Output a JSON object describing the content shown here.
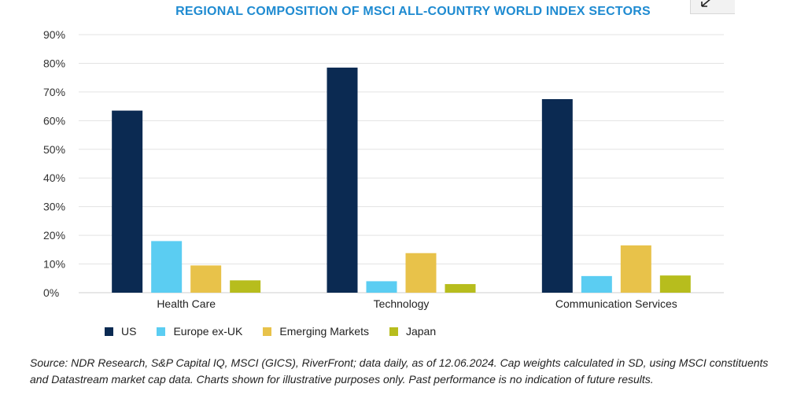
{
  "chart_data": {
    "type": "bar",
    "title": "REGIONAL COMPOSITION OF MSCI ALL-COUNTRY WORLD INDEX SECTORS",
    "categories": [
      "Health Care",
      "Technology",
      "Communication Services"
    ],
    "series": [
      {
        "name": "US",
        "color": "#0b2a52",
        "values": [
          63.5,
          78.5,
          67.5
        ]
      },
      {
        "name": "Europe ex-UK",
        "color": "#5bcdf2",
        "values": [
          18,
          4,
          5.8
        ]
      },
      {
        "name": "Emerging Markets",
        "color": "#e8c24a",
        "values": [
          9.5,
          13.8,
          16.5
        ]
      },
      {
        "name": "Japan",
        "color": "#b7bd1d",
        "values": [
          4.3,
          3,
          6
        ]
      }
    ],
    "ylim": [
      0,
      90
    ],
    "yticks": [
      0,
      10,
      20,
      30,
      40,
      50,
      60,
      70,
      80,
      90
    ],
    "ytick_labels": [
      "0%",
      "10%",
      "20%",
      "30%",
      "40%",
      "50%",
      "60%",
      "70%",
      "80%",
      "90%"
    ],
    "grid": true,
    "legend_position": "bottom-left"
  },
  "source_text": "Source: NDR Research, S&P Capital IQ, MSCI (GICS), RiverFront; data daily, as of 12.06.2024. Cap weights calculated in SD, using MSCI constituents and Datastream market cap data. Charts shown for illustrative purposes only. Past performance is no indication of future results.",
  "corner_icon": "arrow-down-left-icon"
}
